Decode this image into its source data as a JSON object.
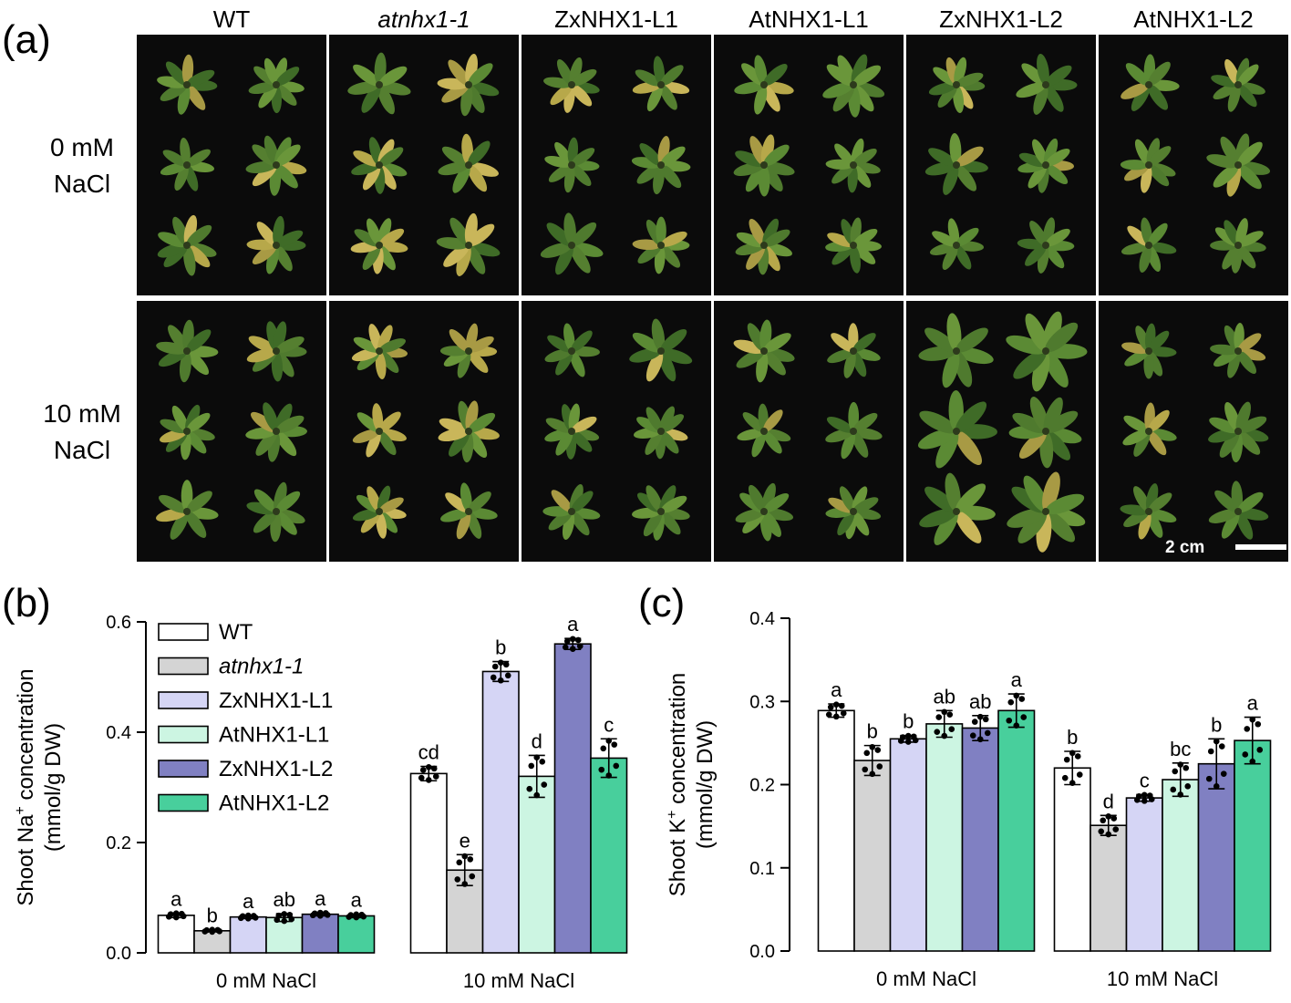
{
  "panel_a": {
    "label": "(a)",
    "columns": [
      "WT",
      "atnhx1-1",
      "ZxNHX1-L1",
      "AtNHX1-L1",
      "ZxNHX1-L2",
      "AtNHX1-L2"
    ],
    "italic_columns": [
      1
    ],
    "rows": [
      {
        "line1": "0 mM",
        "line2": "NaCl"
      },
      {
        "line1": "10 mM",
        "line2": "NaCl"
      }
    ],
    "scale_bar_label": "2 cm"
  },
  "chart_data": [
    {
      "panel_label": "(b)",
      "type": "bar",
      "ylabel_pre": "Shoot Na",
      "ylabel_sup": "+",
      "ylabel_post": " concentration",
      "ylabel_line2": "(mmol/g DW)",
      "ylim": [
        0,
        0.6
      ],
      "yticks": [
        "0.0",
        "0.2",
        "0.4",
        "0.6"
      ],
      "categories": [
        "0 mM NaCl",
        "10 mM NaCl"
      ],
      "legend_position": "top-left",
      "series": [
        {
          "name": "WT",
          "italic": false,
          "color": "#ffffff",
          "values": [
            0.068,
            0.325
          ],
          "errors": [
            0.004,
            0.013
          ],
          "letters": [
            "a",
            "cd"
          ]
        },
        {
          "name": "atnhx1-1",
          "italic": true,
          "color": "#d4d4d4",
          "values": [
            0.04,
            0.15
          ],
          "errors": [
            0.002,
            0.028
          ],
          "letters": [
            "b",
            "e"
          ]
        },
        {
          "name": "ZxNHX1-L1",
          "italic": false,
          "color": "#d5d5f5",
          "values": [
            0.065,
            0.51
          ],
          "errors": [
            0.003,
            0.018
          ],
          "letters": [
            "a",
            "b"
          ]
        },
        {
          "name": "AtNHX1-L1",
          "italic": false,
          "color": "#ccf5e2",
          "values": [
            0.064,
            0.32
          ],
          "errors": [
            0.007,
            0.038
          ],
          "letters": [
            "ab",
            "d"
          ]
        },
        {
          "name": "ZxNHX1-L2",
          "italic": false,
          "color": "#8080c2",
          "values": [
            0.07,
            0.56
          ],
          "errors": [
            0.003,
            0.01
          ],
          "letters": [
            "a",
            "a"
          ]
        },
        {
          "name": "AtNHX1-L2",
          "italic": false,
          "color": "#48cf9c",
          "values": [
            0.067,
            0.353
          ],
          "errors": [
            0.003,
            0.035
          ],
          "letters": [
            "a",
            "c"
          ]
        }
      ]
    },
    {
      "panel_label": "(c)",
      "type": "bar",
      "ylabel_pre": "Shoot K",
      "ylabel_sup": "+",
      "ylabel_post": " concentration",
      "ylabel_line2": "(mmol/g DW)",
      "ylim": [
        0,
        0.4
      ],
      "yticks": [
        "0.0",
        "0.1",
        "0.2",
        "0.3",
        "0.4"
      ],
      "categories": [
        "0 mM NaCl",
        "10 mM NaCl"
      ],
      "series": [
        {
          "name": "WT",
          "color": "#ffffff",
          "values": [
            0.289,
            0.22
          ],
          "errors": [
            0.008,
            0.02
          ],
          "letters": [
            "a",
            "b"
          ]
        },
        {
          "name": "atnhx1-1",
          "color": "#d4d4d4",
          "values": [
            0.229,
            0.151
          ],
          "errors": [
            0.018,
            0.012
          ],
          "letters": [
            "b",
            "d"
          ]
        },
        {
          "name": "ZxNHX1-L1",
          "color": "#d5d5f5",
          "values": [
            0.255,
            0.184
          ],
          "errors": [
            0.004,
            0.004
          ],
          "letters": [
            "b",
            "c"
          ]
        },
        {
          "name": "AtNHX1-L1",
          "color": "#ccf5e2",
          "values": [
            0.273,
            0.206
          ],
          "errors": [
            0.016,
            0.02
          ],
          "letters": [
            "ab",
            "bc"
          ]
        },
        {
          "name": "ZxNHX1-L2",
          "color": "#8080c2",
          "values": [
            0.268,
            0.225
          ],
          "errors": [
            0.015,
            0.03
          ],
          "letters": [
            "ab",
            "b"
          ]
        },
        {
          "name": "AtNHX1-L2",
          "color": "#48cf9c",
          "values": [
            0.289,
            0.253
          ],
          "errors": [
            0.02,
            0.028
          ],
          "letters": [
            "a",
            "a"
          ]
        }
      ]
    }
  ]
}
